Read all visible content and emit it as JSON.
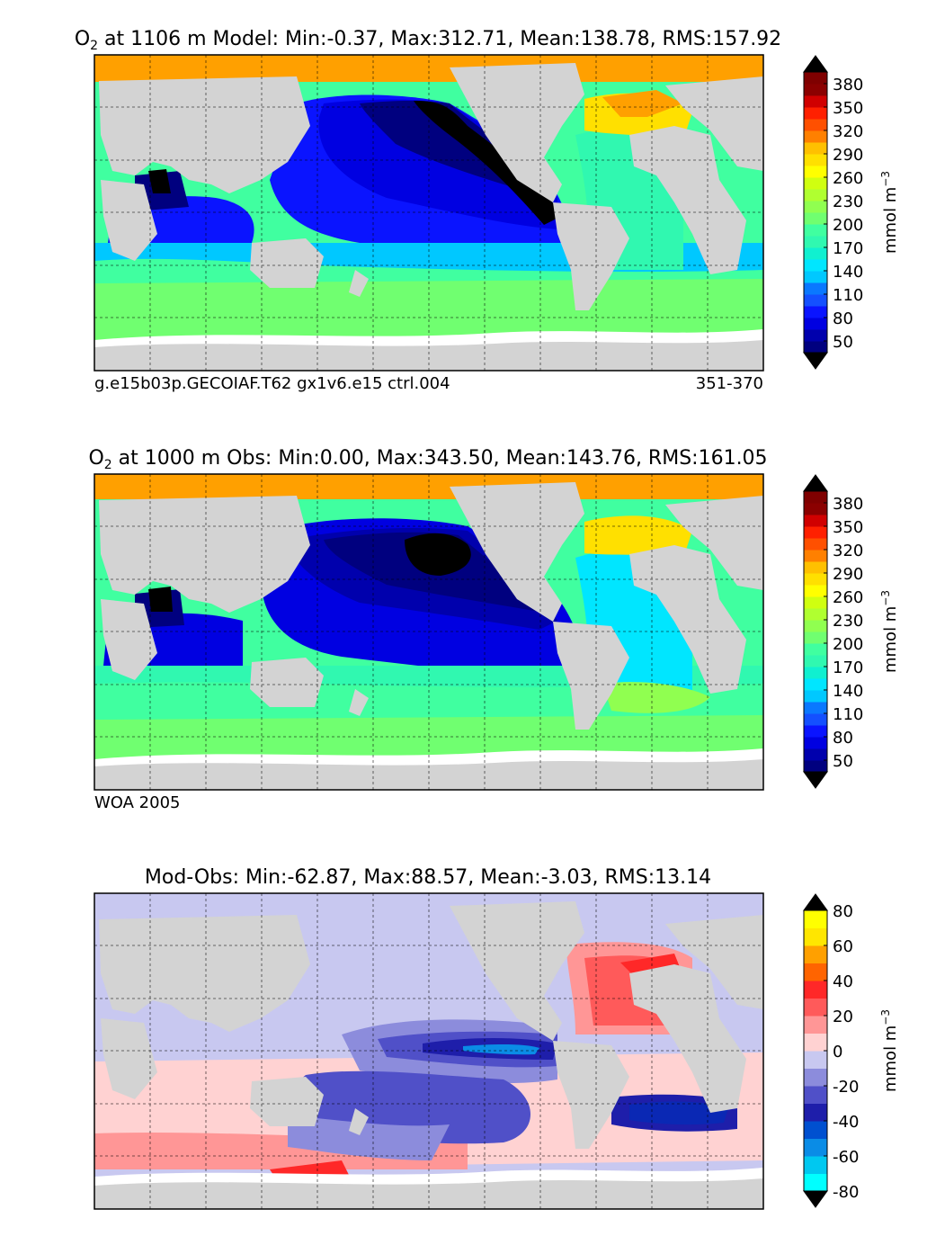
{
  "chart_data": [
    {
      "type": "heatmap",
      "title_prefix": "O",
      "title_sub": "2",
      "title_rest": " at 1106 m Model: Min:-0.37, Max:312.71, Mean:138.78, RMS:157.92",
      "caption_left": "g.e15b03p.GECOIAF.T62 gx1v6.e15 ctrl.004",
      "caption_right": "351-370",
      "stats": {
        "min": -0.37,
        "max": 312.71,
        "mean": 138.78,
        "rms": 157.92
      },
      "depth_m": 1106,
      "colorbar": {
        "label": "mmol m",
        "label_sup": "−3",
        "ticks": [
          "50",
          "80",
          "110",
          "140",
          "170",
          "200",
          "230",
          "260",
          "290",
          "320",
          "350",
          "380"
        ],
        "levels": [
          35,
          50,
          65,
          80,
          95,
          110,
          125,
          140,
          155,
          170,
          185,
          200,
          215,
          230,
          245,
          260,
          275,
          290,
          305,
          320,
          335,
          350,
          365,
          380,
          395
        ],
        "extend": "both"
      }
    },
    {
      "type": "heatmap",
      "title_prefix": "O",
      "title_sub": "2",
      "title_rest": " at 1000 m Obs: Min:0.00, Max:343.50, Mean:143.76, RMS:161.05",
      "caption_left": "WOA 2005",
      "caption_right": "",
      "stats": {
        "min": 0.0,
        "max": 343.5,
        "mean": 143.76,
        "rms": 161.05
      },
      "depth_m": 1000,
      "colorbar": {
        "label": "mmol m",
        "label_sup": "−3",
        "ticks": [
          "50",
          "80",
          "110",
          "140",
          "170",
          "200",
          "230",
          "260",
          "290",
          "320",
          "350",
          "380"
        ],
        "levels": [
          35,
          50,
          65,
          80,
          95,
          110,
          125,
          140,
          155,
          170,
          185,
          200,
          215,
          230,
          245,
          260,
          275,
          290,
          305,
          320,
          335,
          350,
          365,
          380,
          395
        ],
        "extend": "both"
      }
    },
    {
      "type": "heatmap",
      "title_prefix": "",
      "title_sub": "",
      "title_rest": "Mod-Obs: Min:-62.87, Max:88.57, Mean:-3.03, RMS:13.14",
      "caption_left": "",
      "caption_right": "",
      "stats": {
        "min": -62.87,
        "max": 88.57,
        "mean": -3.03,
        "rms": 13.14
      },
      "colorbar": {
        "label": "mmol m",
        "label_sup": "−3",
        "ticks": [
          "-80",
          "-60",
          "-40",
          "-20",
          "0",
          "20",
          "40",
          "60",
          "80"
        ],
        "levels": [
          -80,
          -70,
          -60,
          -50,
          -40,
          -30,
          -20,
          -10,
          0,
          10,
          20,
          30,
          40,
          50,
          60,
          70,
          80
        ],
        "extend": "both"
      }
    }
  ],
  "colors": {
    "land": "#d3d3d3",
    "ice": "#ffffff",
    "o2_scale": [
      "#00007f",
      "#0000ad",
      "#0000e1",
      "#0a14ff",
      "#1450ff",
      "#0a78ff",
      "#00a0ff",
      "#00c8ff",
      "#00e6ff",
      "#10f0d0",
      "#30f8b0",
      "#40ffa0",
      "#70ff70",
      "#90ff50",
      "#b0ff30",
      "#d0ff10",
      "#ffff00",
      "#ffe000",
      "#ffc000",
      "#ffa000",
      "#ff8000",
      "#ff5000",
      "#ff2000",
      "#d00000",
      "#8b0000",
      "#7f0000"
    ],
    "diff_scale": [
      "#00ffff",
      "#00c8f0",
      "#0a8ce6",
      "#0050d0",
      "#0a28b4",
      "#1e1eaa",
      "#5050c8",
      "#8c8cdc",
      "#c8c8f0",
      "#ffd2d2",
      "#ff9696",
      "#ff5a5a",
      "#ff2828",
      "#ff1414",
      "#ff6400",
      "#ffa000",
      "#ffe600",
      "#ffff00"
    ],
    "o2_over": "#000000",
    "o2_under": "#000000",
    "diff_over": "#000000",
    "diff_under": "#000000"
  }
}
